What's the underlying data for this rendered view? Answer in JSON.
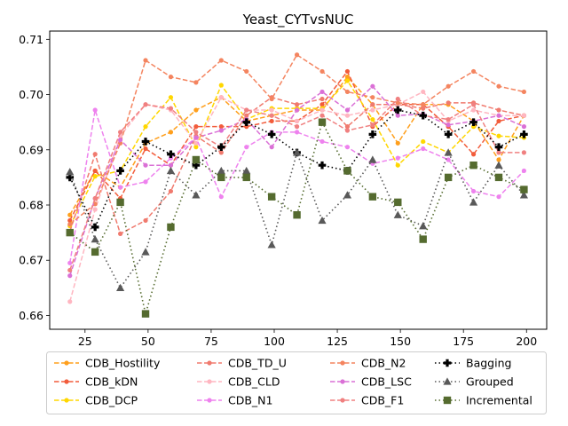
{
  "chart_data": {
    "type": "line",
    "title": "Yeast_CYTvsNUC",
    "xlabel": "",
    "ylabel": "",
    "xlim": [
      11,
      208
    ],
    "ylim": [
      0.6575,
      0.7115
    ],
    "xticks": [
      25,
      50,
      75,
      100,
      125,
      150,
      175,
      200
    ],
    "yticks": [
      0.66,
      0.67,
      0.68,
      0.69,
      0.7,
      0.71
    ],
    "ytick_labels": [
      "0.66",
      "0.67",
      "0.68",
      "0.69",
      "0.70",
      "0.71"
    ],
    "grid": false,
    "legend_position": "bottom, outside plot, 3 columns",
    "x": [
      19,
      29,
      39,
      49,
      59,
      69,
      79,
      89,
      99,
      109,
      119,
      129,
      139,
      149,
      159,
      169,
      179,
      189,
      199
    ],
    "series": [
      {
        "name": "CDB_Hostility",
        "color": "#ff9f1c",
        "marker": "circle",
        "linestyle": "dashed",
        "values": [
          0.6782,
          0.6862,
          0.6832,
          0.6912,
          0.6932,
          0.6972,
          0.6995,
          0.6952,
          0.6962,
          0.6972,
          0.6972,
          0.7032,
          0.6982,
          0.6912,
          0.6982,
          0.6982,
          0.6952,
          0.6882,
          0.6962
        ]
      },
      {
        "name": "CDB_kDN",
        "color": "#f25c3b",
        "marker": "circle",
        "linestyle": "dashed",
        "values": [
          0.6772,
          0.6862,
          0.6812,
          0.6902,
          0.6872,
          0.6942,
          0.6942,
          0.6942,
          0.6952,
          0.6952,
          0.6982,
          0.7042,
          0.6942,
          0.6982,
          0.6982,
          0.6942,
          0.6892,
          0.6952,
          0.6962
        ]
      },
      {
        "name": "CDB_DCP",
        "color": "#ffd700",
        "marker": "circle",
        "linestyle": "dashed",
        "values": [
          0.6762,
          0.6852,
          0.6862,
          0.6942,
          0.6995,
          0.6905,
          0.7017,
          0.6955,
          0.6975,
          0.6975,
          0.6975,
          0.7025,
          0.6955,
          0.6872,
          0.6915,
          0.6895,
          0.6942,
          0.6925,
          0.6922
        ]
      },
      {
        "name": "CDB_TD_U",
        "color": "#f07a6e",
        "marker": "circle",
        "linestyle": "dashed",
        "values": [
          0.6752,
          0.6892,
          0.6748,
          0.6772,
          0.6825,
          0.6925,
          0.6895,
          0.6962,
          0.6995,
          0.6982,
          0.6992,
          0.6942,
          0.6982,
          0.6982,
          0.6975,
          0.6985,
          0.6985,
          0.6972,
          0.6962
        ]
      },
      {
        "name": "CDB_CLD",
        "color": "#ffb6c1",
        "marker": "circle",
        "linestyle": "dashed",
        "values": [
          0.6625,
          0.6792,
          0.6925,
          0.6982,
          0.6972,
          0.6912,
          0.6995,
          0.6972,
          0.6972,
          0.6952,
          0.6972,
          0.6962,
          0.6972,
          0.6982,
          0.7005,
          0.6952,
          0.6972,
          0.6962,
          0.6962
        ]
      },
      {
        "name": "CDB_N1",
        "color": "#ee82ee",
        "marker": "circle",
        "linestyle": "dashed",
        "values": [
          0.6695,
          0.6972,
          0.6832,
          0.6842,
          0.6885,
          0.6922,
          0.6815,
          0.6905,
          0.6932,
          0.6932,
          0.6915,
          0.6905,
          0.6875,
          0.6885,
          0.6902,
          0.6882,
          0.6825,
          0.6815,
          0.6862
        ]
      },
      {
        "name": "CDB_N2",
        "color": "#f4845f",
        "marker": "circle",
        "linestyle": "dashed",
        "values": [
          0.6765,
          0.6802,
          0.6912,
          0.7062,
          0.7032,
          0.7022,
          0.7062,
          0.7042,
          0.6992,
          0.7072,
          0.7042,
          0.7005,
          0.6995,
          0.6985,
          0.6982,
          0.7015,
          0.7042,
          0.7015,
          0.7005
        ]
      },
      {
        "name": "CDB_LSC",
        "color": "#da70d6",
        "marker": "circle",
        "linestyle": "dashed",
        "values": [
          0.6672,
          0.6812,
          0.6918,
          0.6872,
          0.6872,
          0.6922,
          0.6935,
          0.6955,
          0.6905,
          0.6972,
          0.7005,
          0.6972,
          0.7015,
          0.6962,
          0.6965,
          0.6945,
          0.6952,
          0.6962,
          0.6942
        ]
      },
      {
        "name": "CDB_F1",
        "color": "#f08080",
        "marker": "circle",
        "linestyle": "dashed",
        "values": [
          0.6682,
          0.6812,
          0.6932,
          0.6982,
          0.6975,
          0.6932,
          0.6905,
          0.6972,
          0.6962,
          0.6942,
          0.6962,
          0.6935,
          0.6945,
          0.6992,
          0.6962,
          0.6955,
          0.6982,
          0.6895,
          0.6895
        ]
      },
      {
        "name": "Bagging",
        "color": "#000000",
        "marker": "plus",
        "linestyle": "dotted",
        "values": [
          0.685,
          0.676,
          0.6862,
          0.6915,
          0.6892,
          0.6872,
          0.6905,
          0.695,
          0.6928,
          0.6895,
          0.6872,
          0.6862,
          0.6928,
          0.6972,
          0.6962,
          0.6928,
          0.695,
          0.6905,
          0.6928
        ]
      },
      {
        "name": "Grouped",
        "color": "#595959",
        "marker": "triangle",
        "linestyle": "dotted",
        "values": [
          0.686,
          0.6738,
          0.665,
          0.6715,
          0.6862,
          0.6818,
          0.6862,
          0.6862,
          0.6728,
          0.6895,
          0.6772,
          0.6818,
          0.6882,
          0.6782,
          0.6762,
          0.6895,
          0.6805,
          0.6872,
          0.6818
        ]
      },
      {
        "name": "Incremental",
        "color": "#556b2f",
        "marker": "square",
        "linestyle": "dotted",
        "values": [
          0.675,
          0.6715,
          0.6805,
          0.6603,
          0.676,
          0.6882,
          0.685,
          0.685,
          0.6815,
          0.6782,
          0.695,
          0.6862,
          0.6815,
          0.6805,
          0.6738,
          0.685,
          0.6872,
          0.685,
          0.6828
        ]
      }
    ]
  }
}
